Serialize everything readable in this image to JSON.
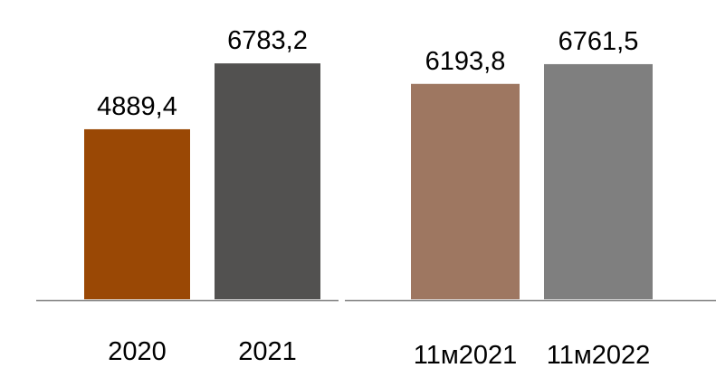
{
  "chart_data": [
    {
      "type": "bar",
      "categories": [
        "2020",
        "2021"
      ],
      "values": [
        4889.4,
        6783.2
      ],
      "value_labels": [
        "4889,4",
        "6783,2"
      ],
      "colors": [
        "#9A4805",
        "#525150"
      ],
      "title": "",
      "xlabel": "",
      "ylabel": "",
      "ylim": [
        0,
        7800
      ],
      "grid": false,
      "legend": "none"
    },
    {
      "type": "bar",
      "categories": [
        "11м2021",
        "11м2022"
      ],
      "values": [
        6193.8,
        6761.5
      ],
      "value_labels": [
        "6193,8",
        "6761,5"
      ],
      "colors": [
        "#9E7761",
        "#7F7F7F"
      ],
      "title": "",
      "xlabel": "",
      "ylabel": "",
      "ylim": [
        0,
        7800
      ],
      "grid": false,
      "legend": "none"
    }
  ]
}
